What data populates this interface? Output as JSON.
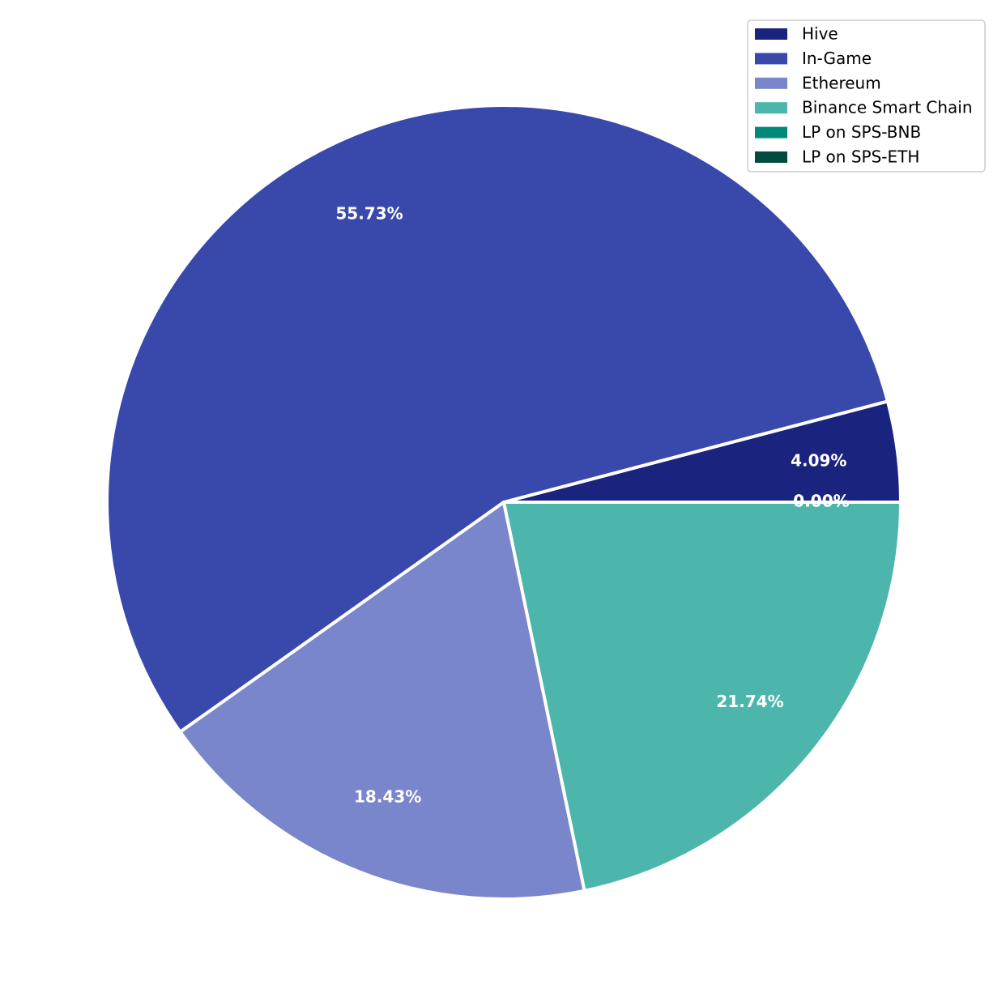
{
  "chart_data": {
    "type": "pie",
    "categories": [
      "Hive",
      "In-Game",
      "Ethereum",
      "Binance Smart Chain",
      "LP on SPS-BNB",
      "LP on SPS-ETH"
    ],
    "values": [
      4.09,
      55.73,
      18.43,
      21.74,
      0.0,
      0.0
    ],
    "value_labels": [
      "4.09%",
      "55.73%",
      "18.43%",
      "21.74%",
      "0.00%",
      "0.00%"
    ],
    "colors": [
      "#1a237e",
      "#3949ab",
      "#7986cb",
      "#4db6ac",
      "#00897b",
      "#004d40"
    ],
    "legend": "upper right"
  }
}
